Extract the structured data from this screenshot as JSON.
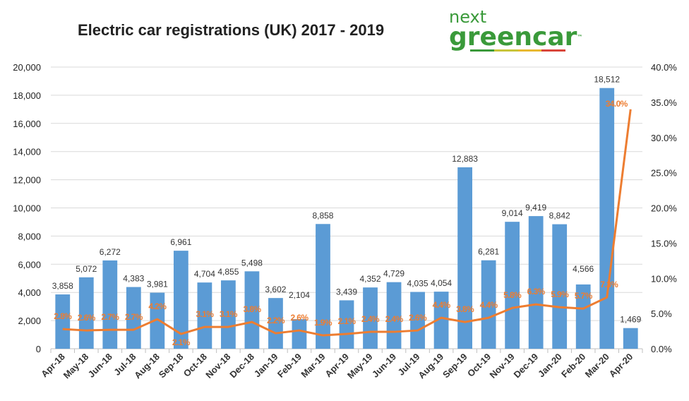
{
  "chart_data": {
    "type": "bar+line",
    "title": "Electric car registrations (UK) 2017 - 2019",
    "categories": [
      "Apr-18",
      "May-18",
      "Jun-18",
      "Jul-18",
      "Aug-18",
      "Sep-18",
      "Oct-18",
      "Nov-18",
      "Dec-18",
      "Jan-19",
      "Feb-19",
      "Mar-19",
      "Apr-19",
      "May-19",
      "Jun-19",
      "Jul-19",
      "Aug-19",
      "Sep-19",
      "Oct-19",
      "Nov-19",
      "Dec-19",
      "Jan-20",
      "Feb-20",
      "Mar-20",
      "Apr-20"
    ],
    "series": [
      {
        "type": "bar",
        "axis": "left",
        "color": "#5b9bd5",
        "values": [
          3858,
          5072,
          6272,
          4383,
          3981,
          6961,
          4704,
          4855,
          5498,
          3602,
          2104,
          8858,
          3439,
          4352,
          4729,
          4035,
          4054,
          12883,
          6281,
          9014,
          9419,
          8842,
          4566,
          18512,
          1469
        ],
        "labels": [
          "3,858",
          "5,072",
          "6,272",
          "4,383",
          "3,981",
          "6,961",
          "4,704",
          "4,855",
          "5,498",
          "3,602",
          "2,104",
          "8,858",
          "3,439",
          "4,352",
          "4,729",
          "4,035",
          "4,054",
          "12,883",
          "6,281",
          "9,014",
          "9,419",
          "8,842",
          "4,566",
          "18,512",
          "1,469"
        ]
      },
      {
        "type": "line",
        "axis": "right",
        "color": "#ed7d31",
        "values": [
          2.8,
          2.6,
          2.7,
          2.7,
          4.2,
          2.1,
          3.1,
          3.1,
          3.8,
          2.2,
          2.6,
          1.9,
          2.1,
          2.4,
          2.4,
          2.6,
          4.4,
          3.8,
          4.4,
          5.8,
          6.3,
          5.9,
          5.7,
          7.3,
          34.0
        ],
        "labels": [
          "2.8%",
          "2.6%",
          "2.7%",
          "2.7%",
          "4.2%",
          "2.1%",
          "3.1%",
          "3.1%",
          "3.8%",
          "2.2%",
          "2.6%",
          "1.9%",
          "2.1%",
          "2.4%",
          "2.4%",
          "2.6%",
          "4.4%",
          "3.8%",
          "4.4%",
          "5.8%",
          "6.3%",
          "5.9%",
          "5.7%",
          "7.3%",
          "34.0%"
        ]
      }
    ],
    "ylim": [
      0,
      20000
    ],
    "yticks": [
      "0",
      "2,000",
      "4,000",
      "6,000",
      "8,000",
      "10,000",
      "12,000",
      "14,000",
      "16,000",
      "18,000",
      "20,000"
    ],
    "y2lim": [
      0,
      40
    ],
    "y2ticks": [
      "0.0%",
      "5.0%",
      "10.0%",
      "15.0%",
      "20.0%",
      "25.0%",
      "30.0%",
      "35.0%",
      "40.0%"
    ],
    "grid": true,
    "legend": "none"
  },
  "logo": {
    "line1": "next",
    "line2": "greencar",
    "tm": "™"
  }
}
